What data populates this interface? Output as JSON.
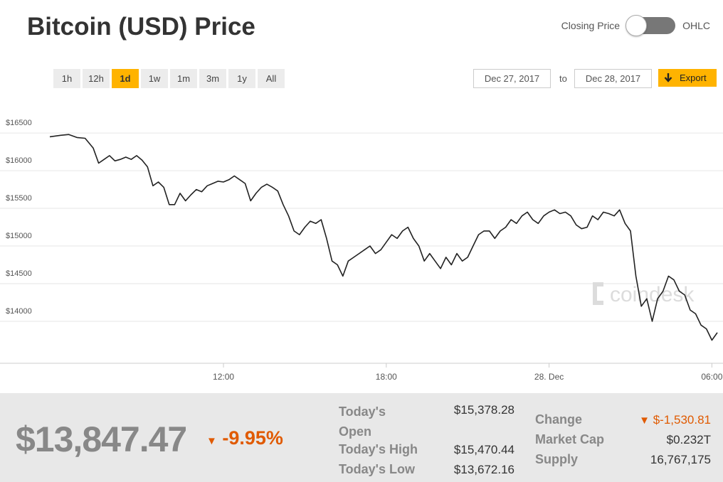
{
  "title": "Bitcoin (USD) Price",
  "toggle": {
    "left_label": "Closing Price",
    "right_label": "OHLC"
  },
  "ranges": [
    "1h",
    "12h",
    "1d",
    "1w",
    "1m",
    "3m",
    "1y",
    "All"
  ],
  "active_range": "1d",
  "date_from": "Dec 27, 2017",
  "date_sep": "to",
  "date_to": "Dec 28, 2017",
  "export": {
    "icon": "arrow-down-icon",
    "label": "Export"
  },
  "watermark": "coindesk",
  "colors": {
    "accent": "#ffb300",
    "negative": "#e05a00",
    "line": "#222222",
    "grid": "#e6e6e6"
  },
  "chart_data": {
    "type": "line",
    "y_ticks": [
      "$16500",
      "$16000",
      "$15500",
      "$15000",
      "$14500",
      "$14000"
    ],
    "y_tick_values": [
      16500,
      16000,
      15500,
      15000,
      14500,
      14000
    ],
    "x_ticks": [
      "12:00",
      "18:00",
      "28. Dec",
      "06:00"
    ],
    "x_tick_hours": [
      12,
      18,
      24,
      30
    ],
    "ylim": [
      13500,
      16850
    ],
    "xlim": [
      5.6,
      30.2
    ],
    "grid": true,
    "series": [
      {
        "x": [
          5.6,
          6.0,
          6.3,
          6.6,
          6.9,
          7.2,
          7.4,
          7.6,
          7.8,
          8.0,
          8.2,
          8.4,
          8.6,
          8.8,
          9.0,
          9.2,
          9.4,
          9.6,
          9.8,
          10.0,
          10.2,
          10.4,
          10.6,
          10.8,
          11.0,
          11.2,
          11.4,
          11.6,
          11.8,
          12.0,
          12.2,
          12.4,
          12.6,
          12.8,
          13.0,
          13.2,
          13.4,
          13.6,
          13.8,
          14.0,
          14.2,
          14.4,
          14.6,
          14.8,
          15.0,
          15.2,
          15.4,
          15.6,
          15.8,
          16.0,
          16.2,
          16.4,
          16.6,
          16.8,
          17.0,
          17.2,
          17.4,
          17.6,
          17.8,
          18.0,
          18.2,
          18.4,
          18.6,
          18.8,
          19.0,
          19.2,
          19.4,
          19.6,
          19.8,
          20.0,
          20.2,
          20.4,
          20.6,
          20.8,
          21.0,
          21.2,
          21.4,
          21.6,
          21.8,
          22.0,
          22.2,
          22.4,
          22.6,
          22.8,
          23.0,
          23.2,
          23.4,
          23.6,
          23.8,
          24.0,
          24.2,
          24.4,
          24.6,
          24.8,
          25.0,
          25.2,
          25.4,
          25.6,
          25.8,
          26.0,
          26.2,
          26.4,
          26.6,
          26.8,
          27.0,
          27.2,
          27.4,
          27.6,
          27.8,
          28.0,
          28.2,
          28.4,
          28.6,
          28.8,
          29.0,
          29.2,
          29.4,
          29.6,
          29.8,
          30.0,
          30.2
        ],
        "y": [
          16450,
          16470,
          16480,
          16440,
          16430,
          16300,
          16100,
          16150,
          16200,
          16130,
          16150,
          16180,
          16150,
          16200,
          16140,
          16050,
          15800,
          15850,
          15780,
          15550,
          15550,
          15700,
          15600,
          15680,
          15750,
          15720,
          15800,
          15830,
          15860,
          15850,
          15880,
          15930,
          15880,
          15830,
          15600,
          15700,
          15780,
          15820,
          15780,
          15730,
          15550,
          15400,
          15200,
          15150,
          15250,
          15330,
          15300,
          15350,
          15100,
          14800,
          14750,
          14600,
          14800,
          14850,
          14900,
          14950,
          15000,
          14900,
          14950,
          15050,
          15150,
          15100,
          15200,
          15250,
          15100,
          15000,
          14800,
          14900,
          14800,
          14700,
          14850,
          14750,
          14900,
          14800,
          14850,
          15000,
          15150,
          15200,
          15200,
          15100,
          15200,
          15250,
          15350,
          15300,
          15400,
          15450,
          15350,
          15300,
          15400,
          15450,
          15480,
          15430,
          15450,
          15400,
          15280,
          15230,
          15250,
          15400,
          15350,
          15450,
          15430,
          15400,
          15480,
          15300,
          15200,
          14600,
          14200,
          14300,
          14000,
          14300,
          14400,
          14600,
          14550,
          14400,
          14350,
          14150,
          14100,
          13950,
          13900,
          13750,
          13850
        ]
      }
    ]
  },
  "summary": {
    "price": "$13,847.47",
    "change_pct": "-9.95%",
    "open_label": "Today's Open",
    "open_value": "$15,378.28",
    "high_label": "Today's High",
    "high_value": "$15,470.44",
    "low_label": "Today's Low",
    "low_value": "$13,672.16",
    "change_label": "Change",
    "change_value": "$-1,530.81",
    "mcap_label": "Market Cap",
    "mcap_value": "$0.232T",
    "supply_label": "Supply",
    "supply_value": "16,767,175"
  }
}
